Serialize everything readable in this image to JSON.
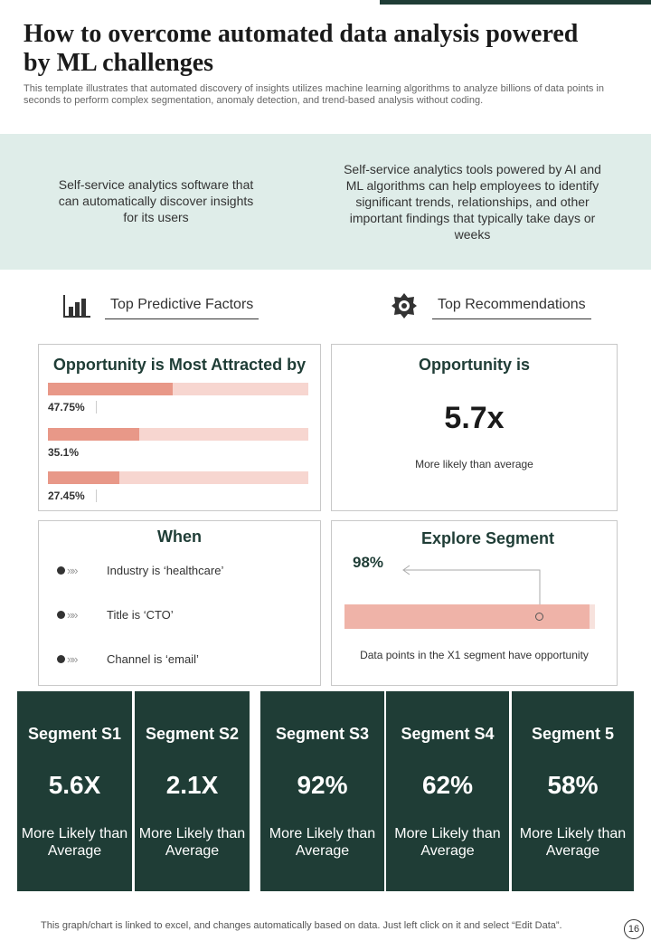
{
  "header": {
    "title": "How to overcome automated data analysis powered by ML challenges",
    "subtitle": "This template illustrates that automated discovery of insights utilizes machine learning algorithms to analyze billions of data points in seconds to perform complex segmentation, anomaly detection, and trend-based analysis without coding."
  },
  "intro": {
    "left": "Self-service analytics software that can automatically discover insights for its users",
    "right": "Self-service analytics tools powered by AI and ML algorithms can help employees to identify significant trends, relationships, and other important findings that typically take days or weeks"
  },
  "sections": {
    "factors": {
      "label": "Top Predictive Factors",
      "icon": "bar-chart-icon"
    },
    "recommendations": {
      "label": "Top Recommendations",
      "icon": "gear-badge-icon"
    }
  },
  "attracted": {
    "title": "Opportunity is Most Attracted by",
    "bars": [
      {
        "label": "47.75%",
        "value": 47.75
      },
      {
        "label": "35.1%",
        "value": 35.1
      },
      {
        "label": "27.45%",
        "value": 27.45
      }
    ]
  },
  "opportunity": {
    "title": "Opportunity is",
    "value": "5.7x",
    "caption": "More likely than average"
  },
  "when": {
    "title": "When",
    "items": [
      "Industry is ‘healthcare’",
      "Title is ‘CTO’",
      "Channel is ‘email’"
    ]
  },
  "explore": {
    "title": "Explore Segment",
    "value": "98%",
    "caption": "Data points in the X1 segment have opportunity",
    "fill_percent": 98
  },
  "segments": [
    {
      "name": "Segment S1",
      "value": "5.6X",
      "desc": "More Likely than Average"
    },
    {
      "name": "Segment S2",
      "value": "2.1X",
      "desc": "More Likely than Average"
    },
    {
      "name": "Segment S3",
      "value": "92%",
      "desc": "More Likely than Average"
    },
    {
      "name": "Segment S4",
      "value": "62%",
      "desc": "More Likely than Average"
    },
    {
      "name": "Segment 5",
      "value": "58%",
      "desc": "More Likely than Average"
    }
  ],
  "footer": {
    "note": "This graph/chart is linked to excel, and changes automatically based on data. Just left click on it and select “Edit Data”.",
    "page": "16"
  },
  "colors": {
    "dark_green": "#1f3d36",
    "mint": "#dfede9",
    "bar_fill": "#e89888",
    "bar_track": "#f7d6d0",
    "segment_bar": "#efb3a8"
  }
}
